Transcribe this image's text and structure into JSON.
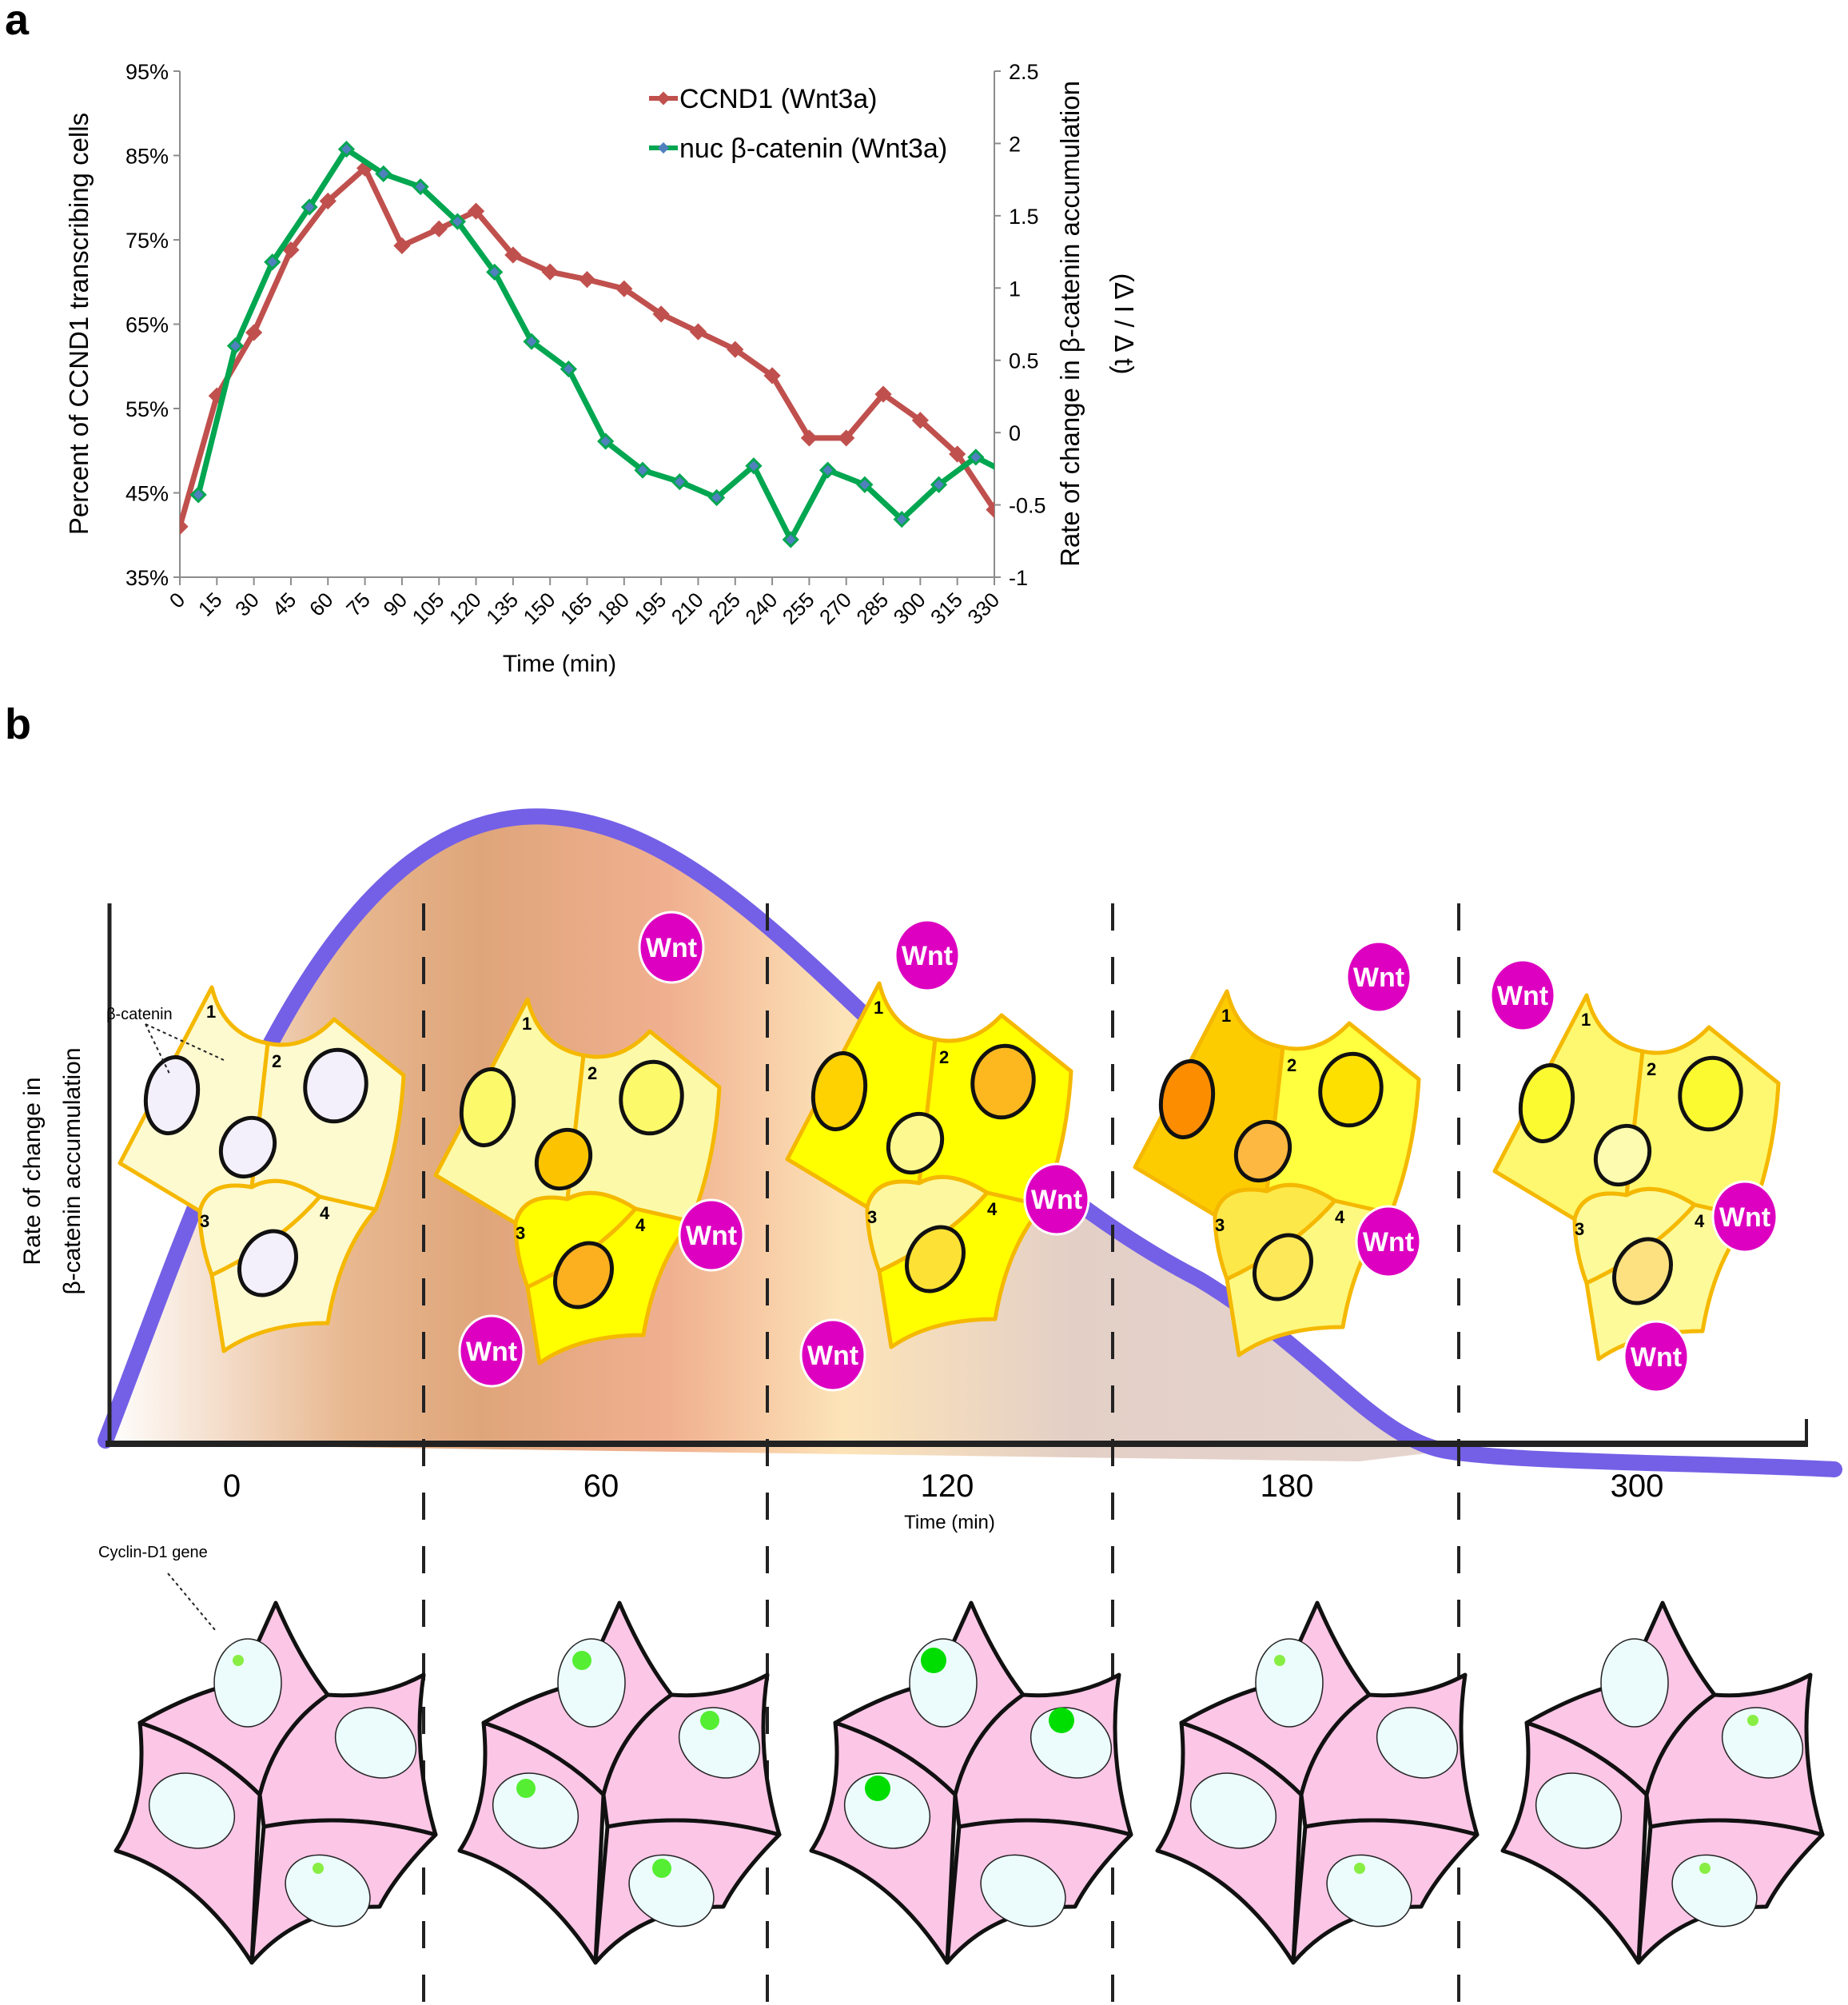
{
  "panels": {
    "a_label": "a",
    "b_label": "b"
  },
  "chart_data": [
    {
      "type": "line",
      "panel": "a",
      "title": "",
      "xlabel": "Time (min)",
      "ylabel_left": "Percent of CCND1  transcribing cells",
      "ylabel_right": "Rate of change in β-catenin accumulation",
      "ylabel_right_sub": "(Δ I / Δ t)",
      "x_ticks": [
        0,
        15,
        30,
        45,
        60,
        75,
        90,
        105,
        120,
        135,
        150,
        165,
        180,
        195,
        210,
        225,
        240,
        255,
        270,
        285,
        300,
        315,
        330
      ],
      "xlim": [
        0,
        330
      ],
      "ylim_left": [
        35,
        95
      ],
      "y_ticks_left": [
        "35%",
        "45%",
        "55%",
        "65%",
        "75%",
        "85%",
        "95%"
      ],
      "y_ticks_left_values": [
        35,
        45,
        55,
        65,
        75,
        85,
        95
      ],
      "ylim_right": [
        -1,
        2.5
      ],
      "y_ticks_right": [
        "-1",
        "-0.5",
        "0",
        "0.5",
        "1",
        "1.5",
        "2",
        "2.5"
      ],
      "y_ticks_right_values": [
        -1,
        -0.5,
        0,
        0.5,
        1,
        1.5,
        2,
        2.5
      ],
      "grid": false,
      "legend_position": "top-right",
      "series": [
        {
          "name": "CCND1 (Wnt3a)",
          "axis": "left",
          "color": "#c0504d",
          "x": [
            0,
            15,
            30,
            45,
            60,
            75,
            90,
            105,
            120,
            135,
            150,
            165,
            180,
            195,
            210,
            225,
            240,
            255,
            270,
            285,
            300,
            315,
            330
          ],
          "values": [
            41,
            56.5,
            64,
            73.8,
            79.6,
            83.5,
            74.3,
            76.3,
            78.4,
            73.2,
            71.2,
            70.3,
            69.2,
            66.2,
            64.1,
            62,
            58.9,
            51.5,
            51.5,
            56.7,
            53.6,
            49.6,
            43
          ]
        },
        {
          "name": "nuc β-catenin (Wnt3a)",
          "axis": "right",
          "color": "#00a650",
          "x": [
            7.5,
            22.5,
            37.5,
            52.5,
            67.5,
            82.5,
            97.5,
            112.5,
            127.5,
            142.5,
            157.5,
            172.5,
            187.5,
            202.5,
            217.5,
            232.5,
            247.5,
            262.5,
            277.5,
            292.5,
            307.5,
            322.5,
            337.5
          ],
          "values": [
            -0.43,
            0.6,
            1.18,
            1.56,
            1.96,
            1.79,
            1.7,
            1.46,
            1.11,
            0.63,
            0.44,
            -0.06,
            -0.26,
            -0.34,
            -0.45,
            -0.23,
            -0.74,
            -0.26,
            -0.36,
            -0.6,
            -0.36,
            -0.17,
            -0.3
          ]
        }
      ]
    },
    {
      "type": "area",
      "panel": "b",
      "title": "",
      "xlabel": "Time (min)",
      "ylabel": "Rate  of change in",
      "ylabel_line2": "β-catenin accumulation",
      "time_points": [
        "0",
        "60",
        "120",
        "180",
        "300"
      ],
      "curve_shape": "rise to peak near 60 min then decay to baseline by ~180-300 min",
      "curve_color": "#7460e6",
      "grid": false
    }
  ],
  "diagram_b": {
    "annotation_beta_catenin": "β-catenin",
    "annotation_cyclin": "Cyclin-D1 gene",
    "wnt_label": "Wnt",
    "wnt_color": "#dd00c0",
    "cell_numbers": [
      "1",
      "2",
      "3",
      "4"
    ],
    "stages": [
      {
        "time": "0",
        "cytoplasm": [
          "#fdfad0",
          "#fdfad0",
          "#fdfad0",
          "#fdfad0"
        ],
        "nucleus": [
          "#f3f0fb",
          "#f3f0fb",
          "#f3f0fb",
          "#f3f0fb"
        ],
        "gene_dots": [
          1,
          0,
          0,
          1
        ],
        "gene_size": "small",
        "gene_color": "#88ee44"
      },
      {
        "time": "60",
        "cytoplasm": [
          "#fcfaa8",
          "#fcfaa8",
          "#ffff00",
          "#ffff00"
        ],
        "nucleus": [
          "#fcfa6a",
          "#fcfa6a",
          "#fcc400",
          "#fcb020"
        ],
        "gene_dots": [
          1,
          1,
          1,
          1
        ],
        "gene_size": "medium",
        "gene_color": "#55ee33"
      },
      {
        "time": "120",
        "cytoplasm": [
          "#ffff00",
          "#ffff00",
          "#fdf8a0",
          "#ffff00"
        ],
        "nucleus": [
          "#fed100",
          "#fdb820",
          "#fdf890",
          "#fde235"
        ],
        "gene_dots": [
          1,
          1,
          1,
          0
        ],
        "gene_size": "large",
        "gene_color": "#00dd00"
      },
      {
        "time": "180",
        "cytoplasm": [
          "#fdcc00",
          "#ffff40",
          "#fde84a",
          "#fdf880"
        ],
        "nucleus": [
          "#fc8c00",
          "#fde000",
          "#fcb840",
          "#fde85a"
        ],
        "gene_dots": [
          1,
          0,
          0,
          1
        ],
        "gene_size": "small",
        "gene_color": "#88ee44"
      },
      {
        "time": "300",
        "cytoplasm": [
          "#fdf870",
          "#fdf870",
          "#fdfa9a",
          "#fdfa9a"
        ],
        "nucleus": [
          "#fbfa30",
          "#fbfa30",
          "#fdfbb0",
          "#fde080"
        ],
        "gene_dots": [
          0,
          1,
          0,
          1
        ],
        "gene_size": "small",
        "gene_color": "#88ee44"
      }
    ]
  }
}
